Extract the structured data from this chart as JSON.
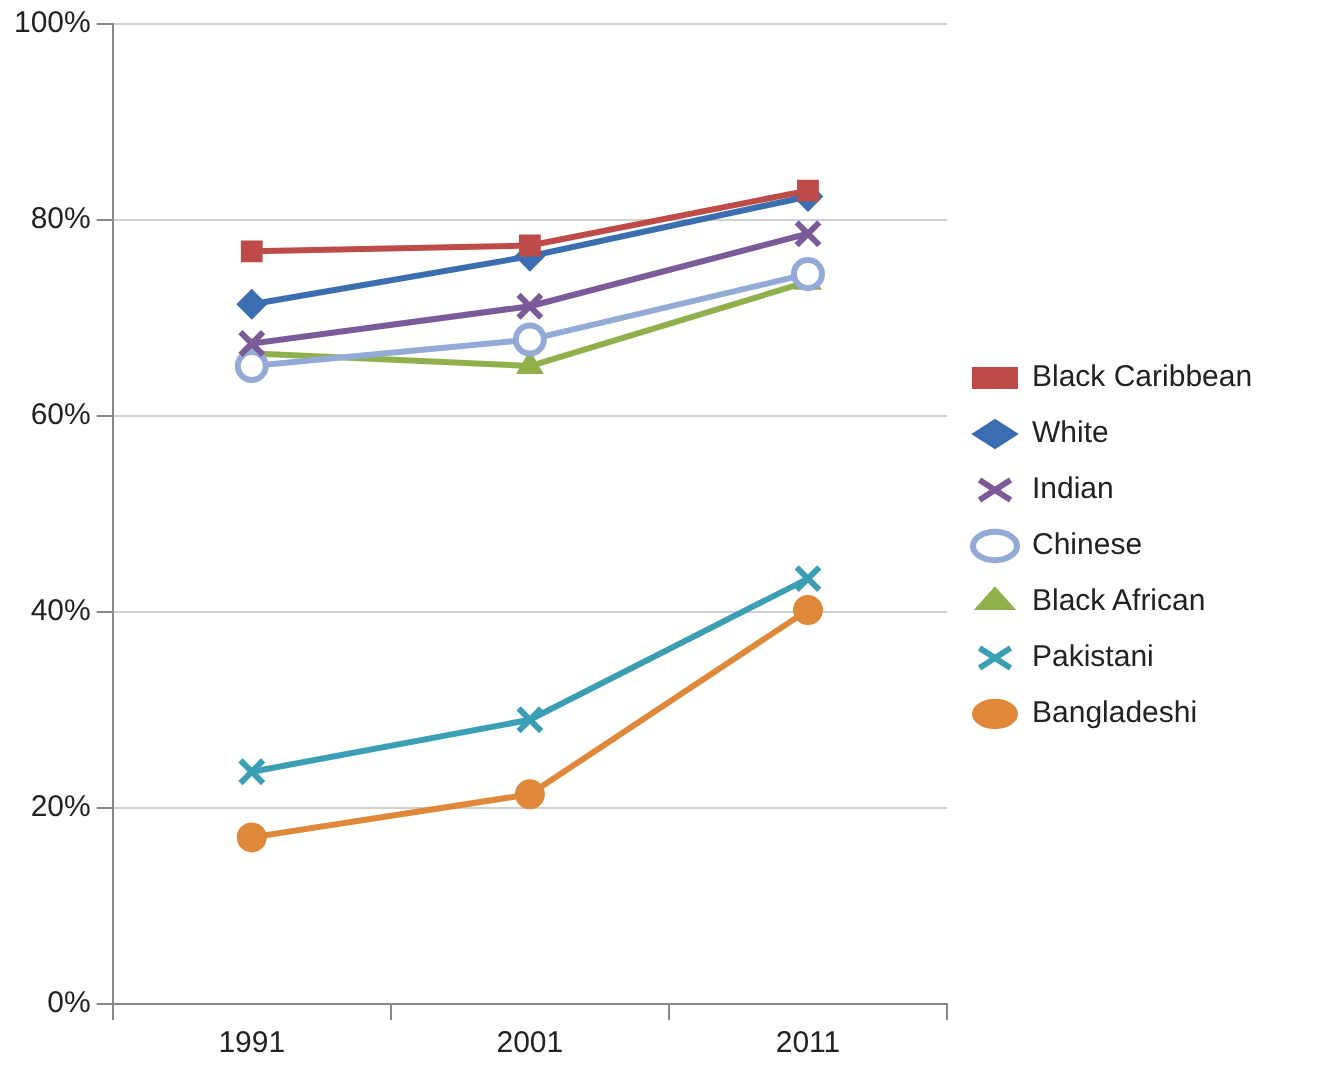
{
  "chart_data": {
    "type": "line",
    "categories": [
      "1991",
      "2001",
      "2011"
    ],
    "series": [
      {
        "name": "Black Caribbean",
        "color": "#be4b48",
        "marker": "square",
        "values": [
          76.8,
          77.4,
          83.0
        ]
      },
      {
        "name": "White",
        "color": "#3a6eb0",
        "marker": "diamond",
        "values": [
          71.4,
          76.3,
          82.4
        ]
      },
      {
        "name": "Indian",
        "color": "#7a5a98",
        "marker": "cross",
        "values": [
          67.4,
          71.2,
          78.6
        ]
      },
      {
        "name": "Chinese",
        "color": "#93a9d6",
        "marker": "circle",
        "values": [
          65.1,
          67.8,
          74.5
        ]
      },
      {
        "name": "Black African",
        "color": "#8fb04a",
        "marker": "triangle",
        "values": [
          66.4,
          65.1,
          73.7
        ]
      },
      {
        "name": "Pakistani",
        "color": "#3a9eb5",
        "marker": "cross",
        "values": [
          23.7,
          29.0,
          43.4
        ]
      },
      {
        "name": "Bangladeshi",
        "color": "#e0883a",
        "marker": "circle",
        "values": [
          17.0,
          21.4,
          40.2
        ]
      }
    ],
    "ylim": [
      0,
      100
    ],
    "yticks": [
      {
        "value": 0,
        "label": "0%"
      },
      {
        "value": 20,
        "label": "20%"
      },
      {
        "value": 40,
        "label": "40%"
      },
      {
        "value": 60,
        "label": "60%"
      },
      {
        "value": 80,
        "label": "80%"
      },
      {
        "value": 100,
        "label": "100%"
      }
    ],
    "grid": "y",
    "legend": "right",
    "line_style": "solid"
  }
}
